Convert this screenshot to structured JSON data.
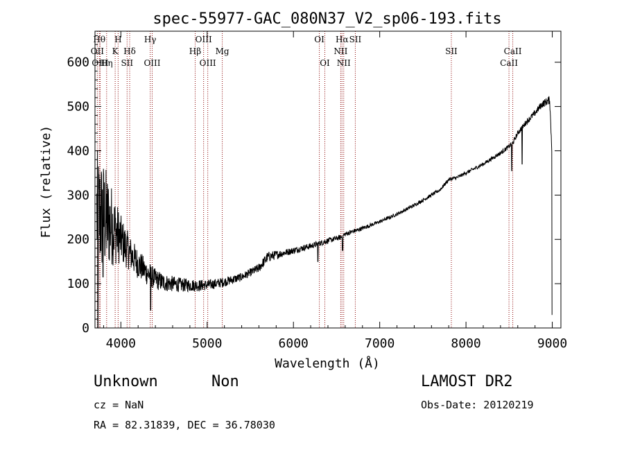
{
  "chart_data": {
    "type": "line",
    "title": "spec-55977-GAC_080N37_V2_sp06-193.fits",
    "xlabel": "Wavelength (Å)",
    "ylabel": "Flux (relative)",
    "xlim": [
      3700,
      9100
    ],
    "ylim": [
      0,
      670
    ],
    "xticks": [
      4000,
      5000,
      6000,
      7000,
      8000,
      9000
    ],
    "yticks": [
      0,
      100,
      200,
      300,
      400,
      500,
      600
    ],
    "grid": false,
    "line_color": "#000000",
    "marker_color": "#8b0000",
    "lines": [
      {
        "label": "OII",
        "x": 3727,
        "row": 2
      },
      {
        "label": "Hθ",
        "x": 3750,
        "row": 1
      },
      {
        "label": "OIII",
        "x": 3760,
        "row": 3
      },
      {
        "label": "Hη",
        "x": 3835,
        "row": 3
      },
      {
        "label": "K",
        "x": 3934,
        "row": 2
      },
      {
        "label": "H",
        "x": 3968,
        "row": 1
      },
      {
        "label": "Hδ",
        "x": 4102,
        "row": 2
      },
      {
        "label": "SII",
        "x": 4072,
        "row": 3
      },
      {
        "label": "Hγ",
        "x": 4340,
        "row": 1
      },
      {
        "label": "OIII",
        "x": 4363,
        "row": 3
      },
      {
        "label": "Hβ",
        "x": 4861,
        "row": 2
      },
      {
        "label": "OIII",
        "x": 4959,
        "row": 1
      },
      {
        "label": "OIII",
        "x": 5007,
        "row": 3
      },
      {
        "label": "Mg",
        "x": 5175,
        "row": 2
      },
      {
        "label": "OI",
        "x": 6300,
        "row": 1
      },
      {
        "label": "OI",
        "x": 6364,
        "row": 3
      },
      {
        "label": "Hα",
        "x": 6563,
        "row": 1
      },
      {
        "label": "NII",
        "x": 6548,
        "row": 2
      },
      {
        "label": "NII",
        "x": 6583,
        "row": 3
      },
      {
        "label": "SII",
        "x": 6717,
        "row": 1
      },
      {
        "label": "SII",
        "x": 7830,
        "row": 2
      },
      {
        "label": "CaII",
        "x": 8498,
        "row": 3
      },
      {
        "label": "CaII",
        "x": 8542,
        "row": 2
      }
    ],
    "continuum": {
      "x": [
        3700,
        3800,
        3900,
        4000,
        4100,
        4200,
        4300,
        4400,
        4500,
        4700,
        4900,
        5000,
        5100,
        5200,
        5400,
        5600,
        5700,
        5800,
        6000,
        6200,
        6400,
        6550,
        6600,
        6800,
        7000,
        7200,
        7400,
        7600,
        7700,
        7800,
        7900,
        8000,
        8200,
        8400,
        8500,
        8550,
        8600,
        8700,
        8800,
        8880,
        8970,
        9000
      ],
      "y": [
        260,
        250,
        230,
        200,
        170,
        145,
        125,
        110,
        102,
        97,
        96,
        97,
        100,
        104,
        115,
        135,
        160,
        165,
        175,
        185,
        197,
        205,
        212,
        225,
        240,
        257,
        277,
        300,
        312,
        335,
        340,
        350,
        370,
        395,
        410,
        420,
        440,
        465,
        485,
        505,
        515,
        380
      ]
    },
    "noise_envelope": {
      "x": [
        3700,
        3800,
        3900,
        4000,
        4100,
        4300,
        4500,
        4700,
        5000,
        5300,
        5500,
        5700,
        5900,
        6200,
        6500,
        7000,
        7500,
        8000,
        8500,
        8800,
        9000
      ],
      "amp": [
        150,
        130,
        90,
        55,
        40,
        28,
        20,
        16,
        12,
        10,
        9,
        12,
        8,
        7,
        6,
        4,
        4,
        4,
        5,
        7,
        10
      ]
    },
    "features": [
      {
        "x": 3733,
        "y": 0
      },
      {
        "x": 3793,
        "y": 115
      },
      {
        "x": 4345,
        "y": 40
      },
      {
        "x": 6283,
        "y": 150
      },
      {
        "x": 6570,
        "y": 175
      },
      {
        "x": 8530,
        "y": 355
      },
      {
        "x": 8650,
        "y": 370
      },
      {
        "x": 9000,
        "y": 30
      }
    ]
  },
  "footer": {
    "object_class": "Unknown",
    "subclass": "Non",
    "survey": "LAMOST DR2",
    "cz": "cz = NaN",
    "obs_date": "Obs-Date: 20120219",
    "coords": "RA =  82.31839, DEC =  36.78030"
  }
}
